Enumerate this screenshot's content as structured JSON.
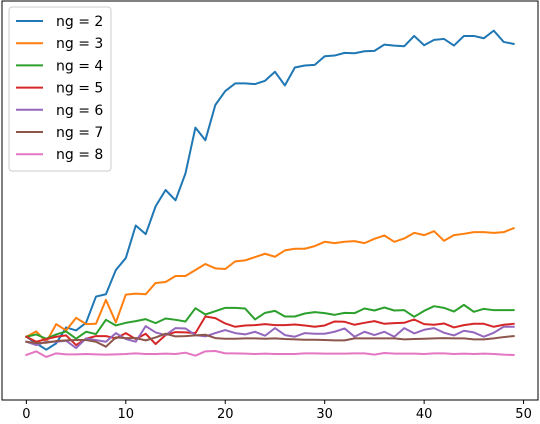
{
  "chart_data": {
    "type": "line",
    "title": "",
    "xlabel": "",
    "ylabel": "",
    "grid": false,
    "legend_position": "top-left",
    "xlim": [
      -2.45,
      51.45
    ],
    "ylim": [
      0,
      1
    ],
    "x_ticks": [
      0,
      10,
      20,
      30,
      40,
      50
    ],
    "y_ticks": [],
    "x": [
      0,
      1,
      2,
      3,
      4,
      5,
      6,
      7,
      8,
      9,
      10,
      11,
      12,
      13,
      14,
      15,
      16,
      17,
      18,
      19,
      20,
      21,
      22,
      23,
      24,
      25,
      26,
      27,
      28,
      29,
      30,
      31,
      32,
      33,
      34,
      35,
      36,
      37,
      38,
      39,
      40,
      41,
      42,
      43,
      44,
      45,
      46,
      47,
      48,
      49
    ],
    "series": [
      {
        "name": "ng = 2",
        "color": "#1f77b4",
        "values": [
          0.055,
          0.035,
          0.016,
          0.035,
          0.083,
          0.074,
          0.097,
          0.176,
          0.183,
          0.256,
          0.292,
          0.39,
          0.364,
          0.448,
          0.497,
          0.466,
          0.547,
          0.685,
          0.647,
          0.753,
          0.795,
          0.818,
          0.818,
          0.816,
          0.826,
          0.853,
          0.812,
          0.866,
          0.872,
          0.874,
          0.9,
          0.902,
          0.91,
          0.909,
          0.915,
          0.916,
          0.935,
          0.932,
          0.93,
          0.961,
          0.933,
          0.949,
          0.952,
          0.932,
          0.961,
          0.961,
          0.954,
          0.977,
          0.943,
          0.937
        ]
      },
      {
        "name": "ng = 3",
        "color": "#ff7f0e",
        "values": [
          0.055,
          0.071,
          0.039,
          0.093,
          0.074,
          0.112,
          0.093,
          0.094,
          0.166,
          0.098,
          0.182,
          0.185,
          0.183,
          0.217,
          0.22,
          0.238,
          0.238,
          0.256,
          0.274,
          0.261,
          0.259,
          0.282,
          0.285,
          0.295,
          0.305,
          0.296,
          0.315,
          0.32,
          0.32,
          0.328,
          0.341,
          0.337,
          0.341,
          0.343,
          0.337,
          0.35,
          0.36,
          0.341,
          0.351,
          0.368,
          0.361,
          0.373,
          0.344,
          0.361,
          0.365,
          0.37,
          0.37,
          0.368,
          0.37,
          0.382
        ]
      },
      {
        "name": "ng = 4",
        "color": "#2ca02c",
        "values": [
          0.055,
          0.062,
          0.049,
          0.062,
          0.071,
          0.049,
          0.07,
          0.063,
          0.106,
          0.089,
          0.097,
          0.102,
          0.108,
          0.096,
          0.11,
          0.106,
          0.101,
          0.141,
          0.122,
          0.132,
          0.142,
          0.142,
          0.14,
          0.107,
          0.127,
          0.133,
          0.116,
          0.116,
          0.125,
          0.129,
          0.126,
          0.121,
          0.127,
          0.126,
          0.14,
          0.134,
          0.143,
          0.134,
          0.135,
          0.115,
          0.133,
          0.147,
          0.142,
          0.131,
          0.151,
          0.13,
          0.139,
          0.135,
          0.135,
          0.135
        ]
      },
      {
        "name": "ng = 5",
        "color": "#d62728",
        "values": [
          0.055,
          0.04,
          0.048,
          0.055,
          0.059,
          0.03,
          0.049,
          0.057,
          0.057,
          0.05,
          0.066,
          0.048,
          0.064,
          0.033,
          0.06,
          0.069,
          0.068,
          0.066,
          0.116,
          0.111,
          0.095,
          0.085,
          0.089,
          0.09,
          0.093,
          0.09,
          0.09,
          0.092,
          0.089,
          0.085,
          0.089,
          0.101,
          0.1,
          0.091,
          0.097,
          0.102,
          0.094,
          0.096,
          0.097,
          0.107,
          0.093,
          0.091,
          0.095,
          0.083,
          0.09,
          0.094,
          0.094,
          0.085,
          0.091,
          0.094
        ]
      },
      {
        "name": "ng = 6",
        "color": "#9467bd",
        "values": [
          0.04,
          0.03,
          0.04,
          0.04,
          0.043,
          0.021,
          0.05,
          0.045,
          0.04,
          0.066,
          0.048,
          0.04,
          0.087,
          0.068,
          0.06,
          0.081,
          0.08,
          0.06,
          0.056,
          0.066,
          0.075,
          0.066,
          0.062,
          0.07,
          0.058,
          0.081,
          0.06,
          0.055,
          0.066,
          0.064,
          0.064,
          0.07,
          0.08,
          0.055,
          0.07,
          0.06,
          0.07,
          0.055,
          0.081,
          0.065,
          0.076,
          0.081,
          0.067,
          0.059,
          0.073,
          0.068,
          0.055,
          0.067,
          0.085,
          0.085
        ]
      },
      {
        "name": "ng = 7",
        "color": "#8c564b",
        "values": [
          0.04,
          0.036,
          0.037,
          0.042,
          0.044,
          0.045,
          0.045,
          0.04,
          0.025,
          0.053,
          0.051,
          0.051,
          0.044,
          0.053,
          0.064,
          0.056,
          0.057,
          0.059,
          0.061,
          0.051,
          0.049,
          0.049,
          0.05,
          0.05,
          0.049,
          0.05,
          0.048,
          0.047,
          0.046,
          0.046,
          0.045,
          0.044,
          0.044,
          0.05,
          0.05,
          0.05,
          0.05,
          0.05,
          0.047,
          0.048,
          0.049,
          0.05,
          0.051,
          0.05,
          0.05,
          0.047,
          0.047,
          0.05,
          0.054,
          0.057
        ]
      },
      {
        "name": "ng = 8",
        "color": "#e377c2",
        "values": [
          0.0,
          0.011,
          -0.006,
          0.005,
          0.002,
          0.002,
          0.003,
          0.002,
          0.001,
          0.002,
          0.003,
          0.005,
          0.003,
          0.003,
          0.004,
          0.003,
          0.007,
          -0.002,
          0.011,
          0.012,
          0.005,
          0.005,
          0.004,
          0.003,
          0.004,
          0.003,
          0.003,
          0.003,
          0.005,
          0.005,
          0.004,
          0.004,
          0.004,
          0.005,
          0.005,
          0.001,
          0.006,
          0.004,
          0.004,
          0.004,
          0.003,
          0.005,
          0.005,
          0.003,
          0.004,
          0.003,
          0.004,
          0.003,
          0.001,
          0.0
        ]
      }
    ]
  }
}
